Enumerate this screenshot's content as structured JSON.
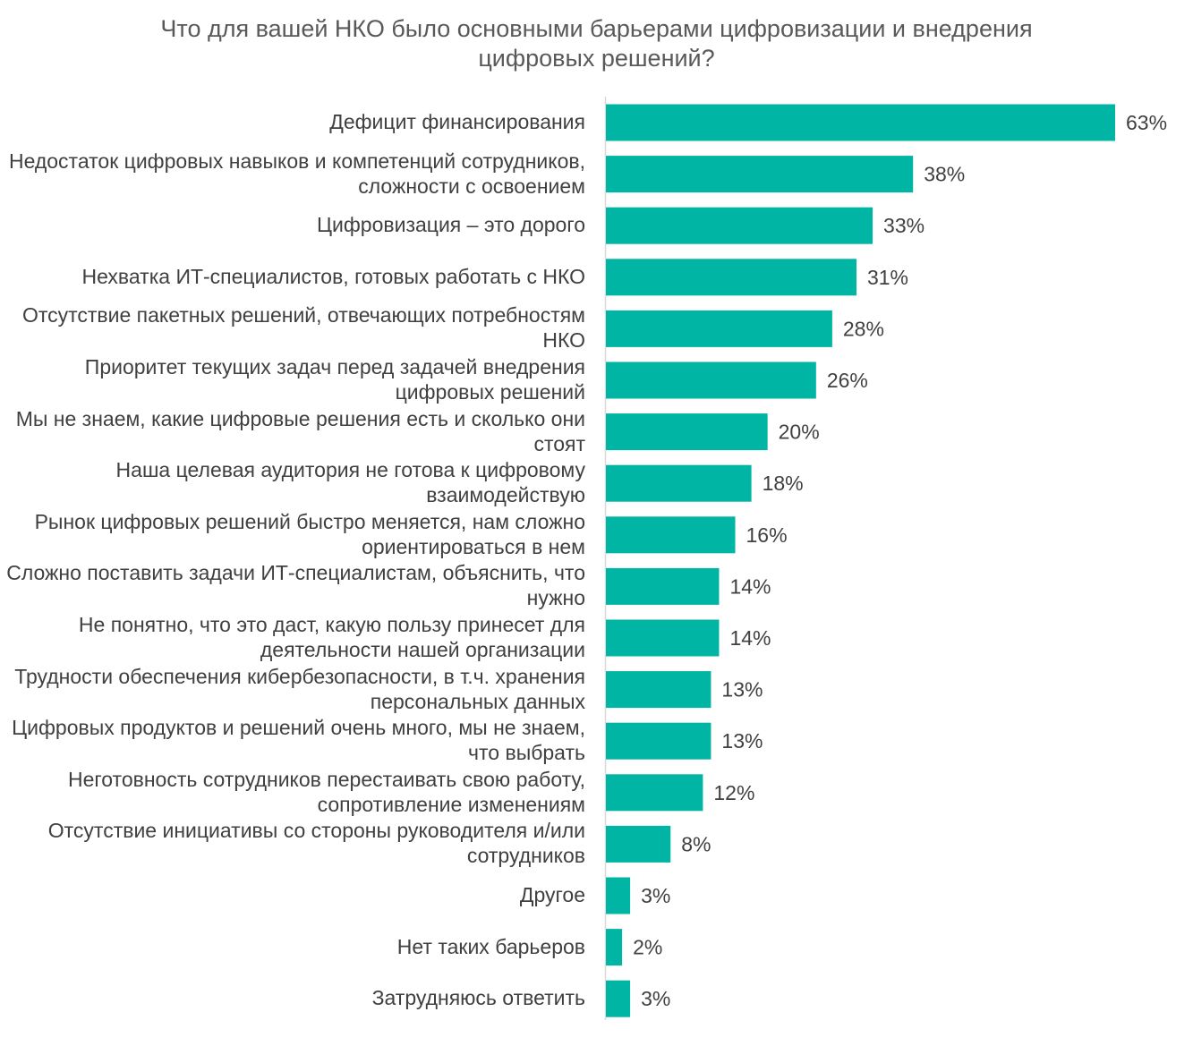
{
  "chart_data": {
    "type": "bar",
    "orientation": "horizontal",
    "title": "Что для вашей НКО было основными барьерами цифровизации и внедрения цифровых решений?",
    "xlabel": "",
    "ylabel": "",
    "unit": "%",
    "xlim": [
      0,
      63
    ],
    "grid": false,
    "legend": "none",
    "color": "#00B5A3",
    "categories": [
      "Дефицит финансирования",
      "Недостаток цифровых навыков и компетенций сотрудников, сложности с освоением",
      "Цифровизация – это дорого",
      "Нехватка ИТ-специалистов, готовых работать с НКО",
      "Отсутствие пакетных решений, отвечающих потребностям НКО",
      "Приоритет текущих задач перед задачей внедрения цифровых решений",
      "Мы не знаем, какие цифровые решения есть и сколько они стоят",
      "Наша целевая аудитория не готова к цифровому взаимодействую",
      "Рынок цифровых решений быстро меняется, нам сложно ориентироваться в нем",
      "Сложно поставить задачи ИТ-специалистам, объяснить, что нужно",
      "Не понятно, что это даст, какую пользу принесет для деятельности нашей организации",
      "Трудности обеспечения кибербезопасности, в т.ч. хранения персональных данных",
      "Цифровых продуктов и решений очень много, мы не знаем, что выбрать",
      "Неготовность сотрудников перестаивать свою работу, сопротивление изменениям",
      "Отсутствие инициативы со стороны руководителя и/или сотрудников",
      "Другое",
      "Нет таких барьеров",
      "Затрудняюсь ответить"
    ],
    "values": [
      63,
      38,
      33,
      31,
      28,
      26,
      20,
      18,
      16,
      14,
      14,
      13,
      13,
      12,
      8,
      3,
      2,
      3
    ],
    "value_labels": [
      "63%",
      "38%",
      "33%",
      "31%",
      "28%",
      "26%",
      "20%",
      "18%",
      "16%",
      "14%",
      "14%",
      "13%",
      "13%",
      "12%",
      "8%",
      "3%",
      "2%",
      "3%"
    ]
  }
}
